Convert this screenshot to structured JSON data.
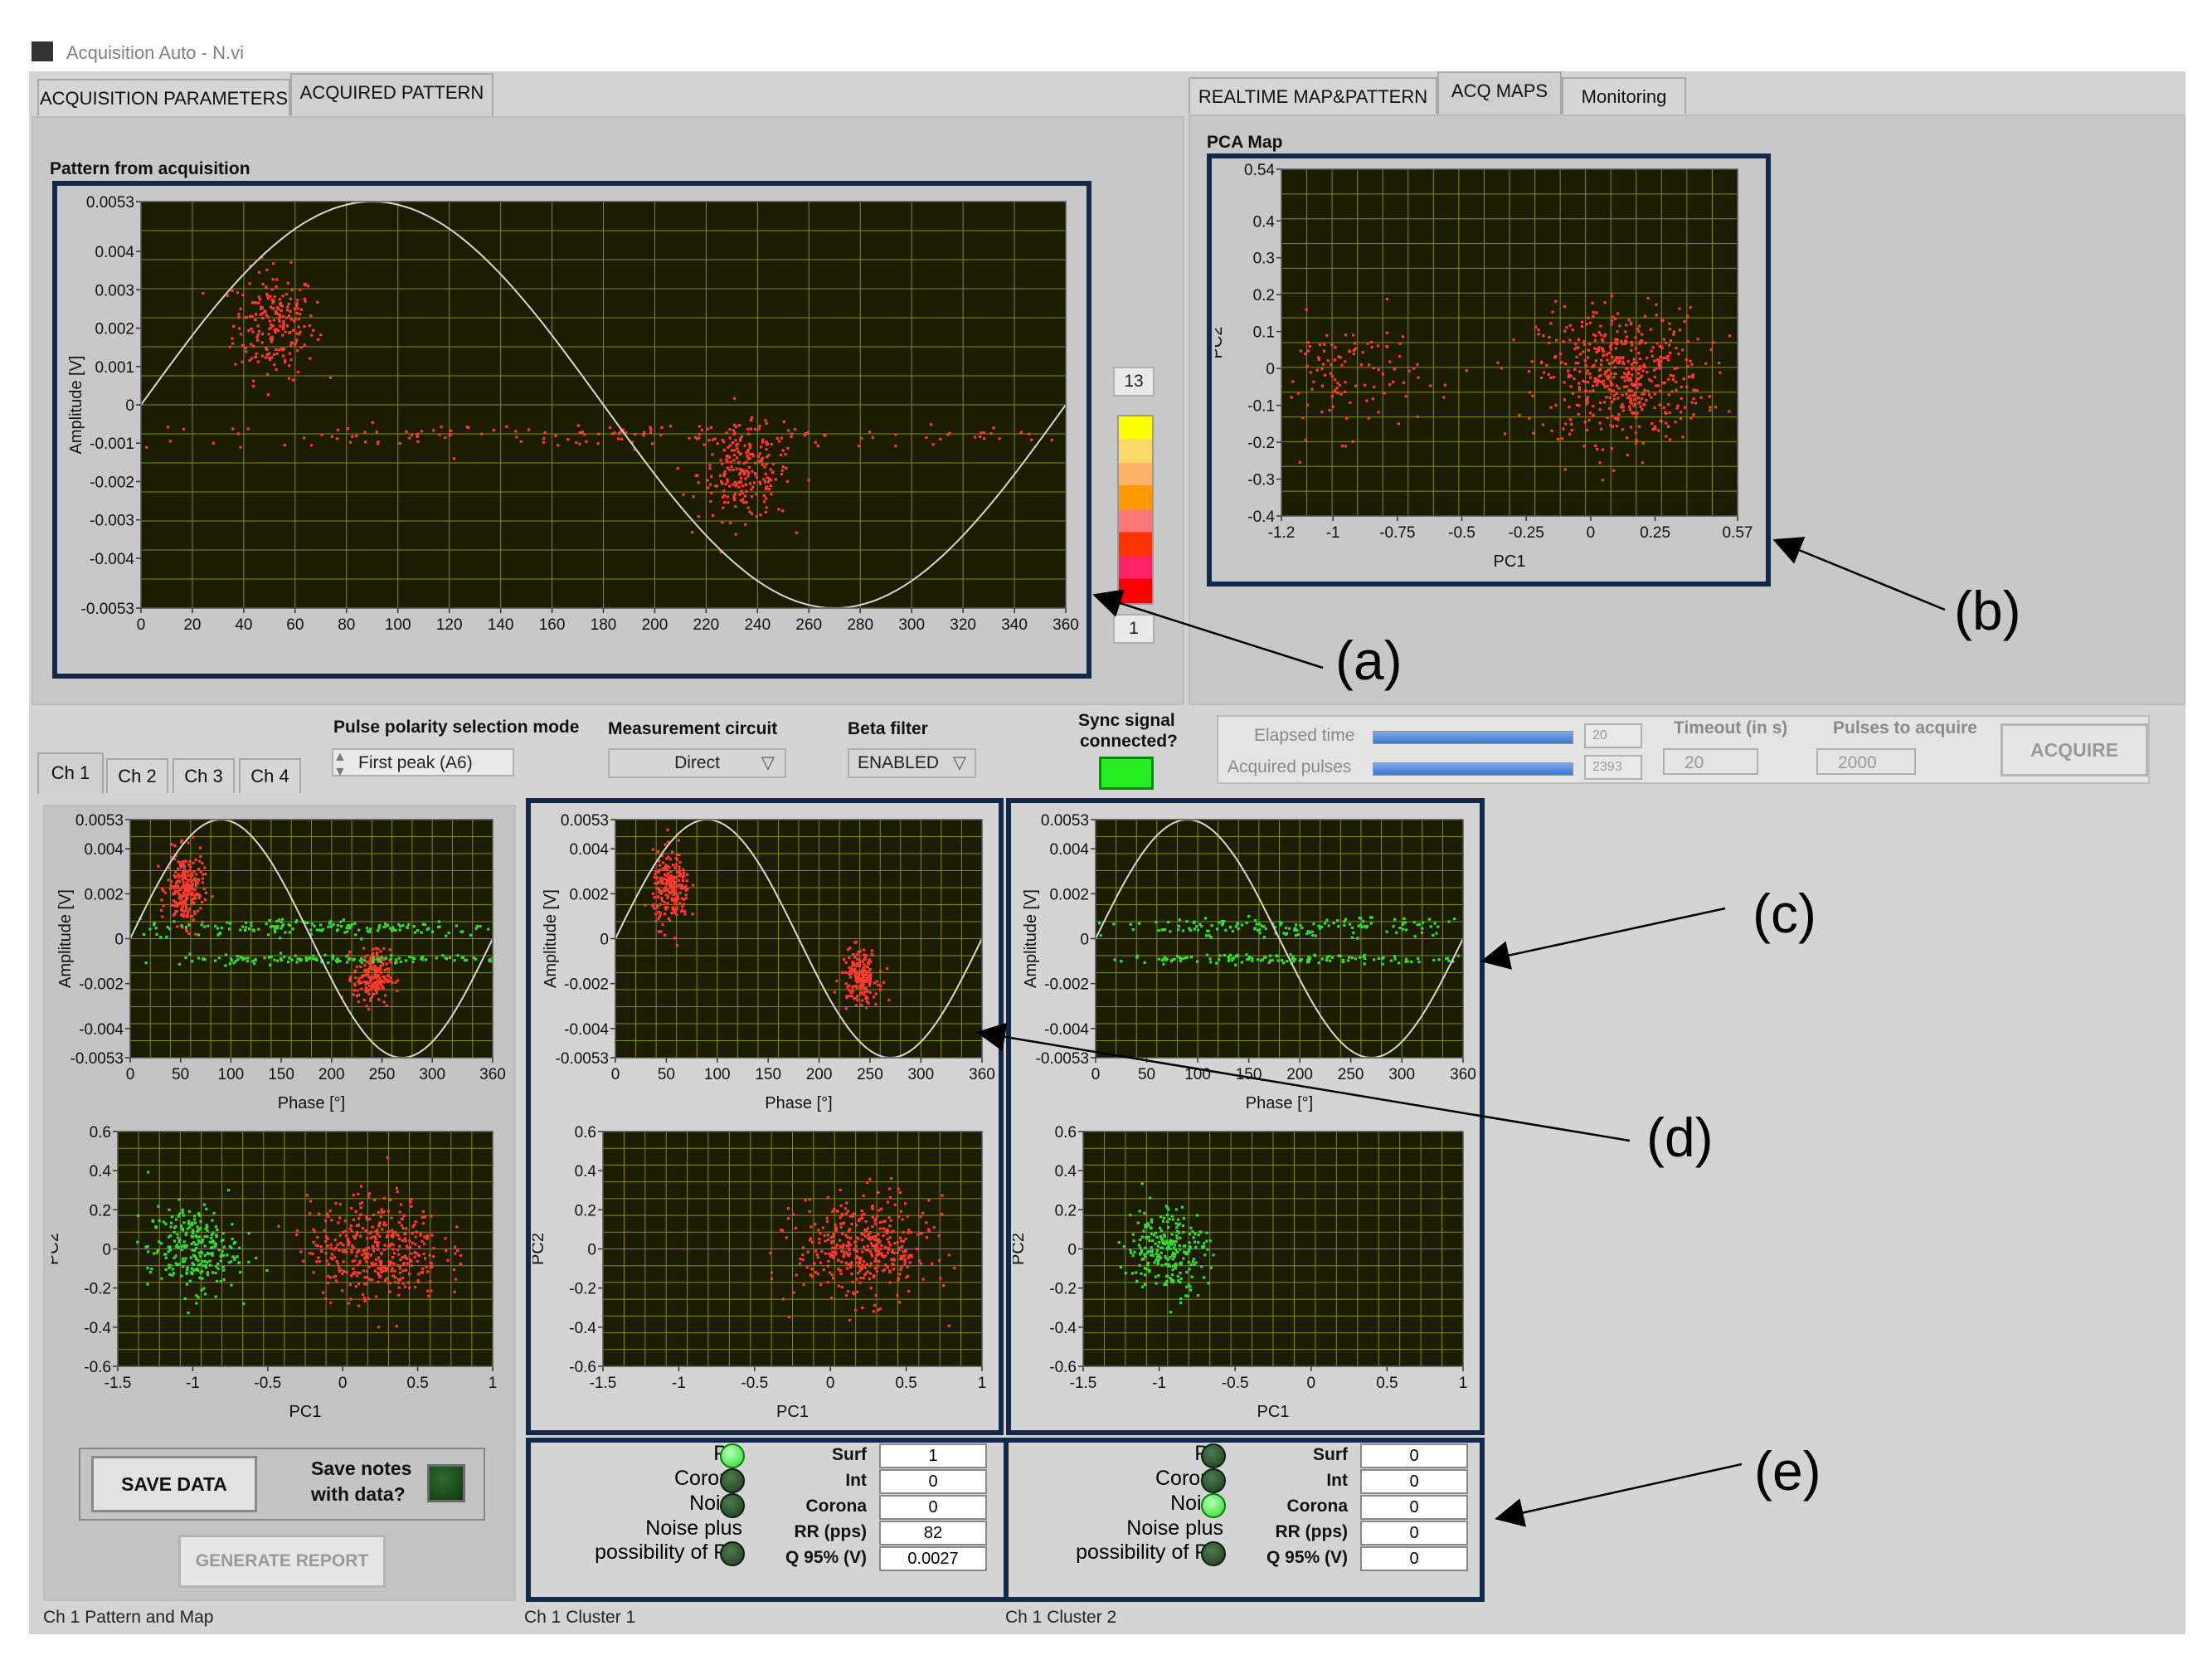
{
  "window_title": "Acquisition Auto - N.vi",
  "left_tabs": [
    "ACQUISITION PARAMETERS",
    "ACQUIRED PATTERN"
  ],
  "right_tabs": [
    "REALTIME MAP&PATTERN",
    "ACQ MAPS",
    "Monitoring"
  ],
  "pattern_label": "Pattern from acquisition",
  "pca_map_label": "PCA Map",
  "colorbar": {
    "max": "13",
    "min": "1"
  },
  "controls": {
    "pulse_polarity_label": "Pulse polarity selection mode",
    "pulse_polarity_value": "First peak (A6)",
    "measurement_circuit_label": "Measurement circuit",
    "measurement_circuit_value": "Direct",
    "beta_filter_label": "Beta filter",
    "beta_filter_value": "ENABLED",
    "sync_label_1": "Sync signal",
    "sync_label_2": "connected?",
    "elapsed_time_label": "Elapsed time",
    "elapsed_time_value": "20",
    "elapsed_progress": 1.0,
    "acquired_pulses_label": "Acquired pulses",
    "acquired_pulses_value": "2393",
    "acquired_progress": 1.0,
    "timeout_label": "Timeout (in s)",
    "timeout_value": "20",
    "pulses_to_acquire_label": "Pulses to acquire",
    "pulses_to_acquire_value": "2000",
    "acquire_button": "ACQUIRE"
  },
  "channel_tabs": [
    "Ch 1",
    "Ch 2",
    "Ch 3",
    "Ch 4"
  ],
  "save_data_button": "SAVE DATA",
  "save_notes_label_1": "Save notes",
  "save_notes_label_2": "with data?",
  "generate_report_button": "GENERATE REPORT",
  "footers": [
    "Ch 1 Pattern and Map",
    "Ch 1 Cluster 1",
    "Ch 1 Cluster 2"
  ],
  "cluster_status": [
    {
      "indicators": [
        {
          "label": "PD",
          "on": true
        },
        {
          "label": "Corona",
          "on": false
        },
        {
          "label": "Noise",
          "on": false
        },
        {
          "label": "Noise plus\npossibility of PD",
          "on": false
        }
      ],
      "fields": [
        {
          "label": "Surf",
          "value": "1"
        },
        {
          "label": "Int",
          "value": "0"
        },
        {
          "label": "Corona",
          "value": "0"
        },
        {
          "label": "RR (pps)",
          "value": "82"
        },
        {
          "label": "Q 95% (V)",
          "value": "0.0027"
        }
      ]
    },
    {
      "indicators": [
        {
          "label": "PD",
          "on": false
        },
        {
          "label": "Corona",
          "on": false
        },
        {
          "label": "Noise",
          "on": true
        },
        {
          "label": "Noise plus\npossibility of PD",
          "on": false
        }
      ],
      "fields": [
        {
          "label": "Surf",
          "value": "0"
        },
        {
          "label": "Int",
          "value": "0"
        },
        {
          "label": "Corona",
          "value": "0"
        },
        {
          "label": "RR (pps)",
          "value": "0"
        },
        {
          "label": "Q 95% (V)",
          "value": "0"
        }
      ]
    }
  ],
  "annotations": [
    "(a)",
    "(b)",
    "(c)",
    "(d)",
    "(e)"
  ],
  "colors": {
    "plot_bg": "#1c1c00",
    "grid": "#8a8a10",
    "red_points": "#ff3b30",
    "green_points": "#33dd33",
    "navy_frame": "#13294b",
    "sine": "#d8d8d8"
  },
  "chart_data": [
    {
      "type": "scatter",
      "id": "main-pattern",
      "xlabel": "",
      "ylabel": "Amplitude [V]",
      "xlim": [
        0,
        360
      ],
      "ylim": [
        -0.0053,
        0.0053
      ],
      "xticks": [
        "0",
        "20",
        "40",
        "60",
        "80",
        "100",
        "120",
        "140",
        "160",
        "180",
        "200",
        "220",
        "240",
        "260",
        "280",
        "300",
        "320",
        "340",
        "360"
      ],
      "yticks": [
        "0.0053",
        "0.004",
        "0.003",
        "0.002",
        "0.001",
        "0",
        "-0.001",
        "-0.002",
        "-0.003",
        "-0.004",
        "-0.0053"
      ],
      "sine": true,
      "series": [
        {
          "color": "red",
          "clusters": [
            {
              "cx": 52,
              "cy": 0.0021,
              "sx": 8,
              "sy": 0.0007,
              "n": 220
            },
            {
              "cx": 235,
              "cy": -0.0018,
              "sx": 9,
              "sy": 0.0006,
              "n": 230
            },
            {
              "cx": 185,
              "cy": -0.0008,
              "sx": 110,
              "sy": 0.00015,
              "n": 160
            }
          ]
        }
      ]
    },
    {
      "type": "scatter",
      "id": "pca-map",
      "xlabel": "PC1",
      "ylabel": "PC2",
      "xlim": [
        -1.2,
        0.57
      ],
      "ylim": [
        -0.4,
        0.54
      ],
      "xticks": [
        "-1.2",
        "-1",
        "-0.75",
        "-0.5",
        "-0.25",
        "0",
        "0.25",
        "0.57"
      ],
      "yticks": [
        "0.54",
        "0.4",
        "0.3",
        "0.2",
        "0.1",
        "0",
        "-0.1",
        "-0.2",
        "-0.3",
        "-0.4"
      ],
      "series": [
        {
          "color": "red",
          "clusters": [
            {
              "cx": 0.12,
              "cy": -0.02,
              "sx": 0.16,
              "sy": 0.09,
              "n": 520
            },
            {
              "cx": -0.95,
              "cy": -0.02,
              "sx": 0.14,
              "sy": 0.08,
              "n": 110
            }
          ]
        }
      ]
    },
    {
      "type": "scatter",
      "id": "ch1-pattern",
      "xlabel": "Phase [°]",
      "ylabel": "Amplitude [V]",
      "xlim": [
        0,
        360
      ],
      "ylim": [
        -0.0053,
        0.0053
      ],
      "xticks": [
        "0",
        "50",
        "100",
        "150",
        "200",
        "250",
        "300",
        "360"
      ],
      "yticks": [
        "0.0053",
        "0.004",
        "0.002",
        "0",
        "-0.002",
        "-0.004",
        "-0.0053"
      ],
      "sine": true,
      "series": [
        {
          "color": "red",
          "clusters": [
            {
              "cx": 55,
              "cy": 0.0022,
              "sx": 9,
              "sy": 0.0008,
              "n": 240
            },
            {
              "cx": 240,
              "cy": -0.0017,
              "sx": 9,
              "sy": 0.0006,
              "n": 200
            }
          ]
        },
        {
          "color": "green",
          "clusters": [
            {
              "cx": 200,
              "cy": 0.0005,
              "sx": 100,
              "sy": 0.0002,
              "n": 160
            },
            {
              "cx": 200,
              "cy": -0.0009,
              "sx": 100,
              "sy": 0.0001,
              "n": 140
            }
          ]
        }
      ]
    },
    {
      "type": "scatter",
      "id": "ch1-map",
      "xlabel": "PC1",
      "ylabel": "PC2",
      "xlim": [
        -1.5,
        1
      ],
      "ylim": [
        -0.6,
        0.6
      ],
      "xticks": [
        "-1.5",
        "-1",
        "-0.5",
        "0",
        "0.5",
        "1"
      ],
      "yticks": [
        "0.6",
        "0.4",
        "0.2",
        "0",
        "-0.2",
        "-0.4",
        "-0.6"
      ],
      "series": [
        {
          "color": "green",
          "clusters": [
            {
              "cx": -1.0,
              "cy": 0.0,
              "sx": 0.15,
              "sy": 0.11,
              "n": 260
            }
          ]
        },
        {
          "color": "red",
          "clusters": [
            {
              "cx": 0.22,
              "cy": 0.0,
              "sx": 0.22,
              "sy": 0.13,
              "n": 420
            }
          ]
        }
      ]
    },
    {
      "type": "scatter",
      "id": "cl1-pattern",
      "xlabel": "Phase [°]",
      "ylabel": "Amplitude [V]",
      "xlim": [
        0,
        360
      ],
      "ylim": [
        -0.0053,
        0.0053
      ],
      "xticks": [
        "0",
        "50",
        "100",
        "150",
        "200",
        "250",
        "300",
        "360"
      ],
      "yticks": [
        "0.0053",
        "0.004",
        "0.002",
        "0",
        "-0.002",
        "-0.004",
        "-0.0053"
      ],
      "sine": true,
      "series": [
        {
          "color": "red",
          "clusters": [
            {
              "cx": 55,
              "cy": 0.0022,
              "sx": 9,
              "sy": 0.0008,
              "n": 220
            },
            {
              "cx": 240,
              "cy": -0.0017,
              "sx": 9,
              "sy": 0.0006,
              "n": 180
            }
          ]
        }
      ]
    },
    {
      "type": "scatter",
      "id": "cl1-map",
      "xlabel": "PC1",
      "ylabel": "PC2",
      "xlim": [
        -1.5,
        1
      ],
      "ylim": [
        -0.6,
        0.6
      ],
      "xticks": [
        "-1.5",
        "-1",
        "-0.5",
        "0",
        "0.5",
        "1"
      ],
      "yticks": [
        "0.6",
        "0.4",
        "0.2",
        "0",
        "-0.2",
        "-0.4",
        "-0.6"
      ],
      "series": [
        {
          "color": "red",
          "clusters": [
            {
              "cx": 0.22,
              "cy": 0.0,
              "sx": 0.22,
              "sy": 0.13,
              "n": 420
            }
          ]
        }
      ]
    },
    {
      "type": "scatter",
      "id": "cl2-pattern",
      "xlabel": "Phase [°]",
      "ylabel": "Amplitude [V]",
      "xlim": [
        0,
        360
      ],
      "ylim": [
        -0.0053,
        0.0053
      ],
      "xticks": [
        "0",
        "50",
        "100",
        "150",
        "200",
        "250",
        "300",
        "360"
      ],
      "yticks": [
        "0.0053",
        "0.004",
        "0.002",
        "0",
        "-0.002",
        "-0.004",
        "-0.0053"
      ],
      "sine": true,
      "series": [
        {
          "color": "green",
          "clusters": [
            {
              "cx": 200,
              "cy": 0.0005,
              "sx": 100,
              "sy": 0.0002,
              "n": 160
            },
            {
              "cx": 200,
              "cy": -0.0009,
              "sx": 100,
              "sy": 0.0001,
              "n": 140
            }
          ]
        }
      ]
    },
    {
      "type": "scatter",
      "id": "cl2-map",
      "xlabel": "PC1",
      "ylabel": "PC2",
      "xlim": [
        -1.5,
        1
      ],
      "ylim": [
        -0.6,
        0.6
      ],
      "xticks": [
        "-1.5",
        "-1",
        "-0.5",
        "0",
        "0.5",
        "1"
      ],
      "yticks": [
        "0.6",
        "0.4",
        "0.2",
        "0",
        "-0.2",
        "-0.4",
        "-0.6"
      ],
      "series": [
        {
          "color": "green",
          "clusters": [
            {
              "cx": -0.95,
              "cy": 0.0,
              "sx": 0.13,
              "sy": 0.11,
              "n": 260
            }
          ]
        }
      ]
    }
  ]
}
